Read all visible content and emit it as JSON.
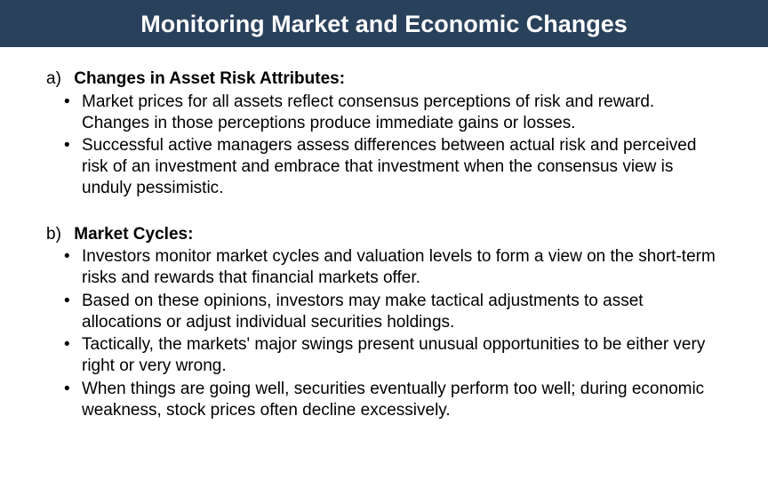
{
  "colors": {
    "title_background": "#2a415c",
    "title_text": "#ffffff",
    "body_text": "#000000",
    "page_background": "#ffffff"
  },
  "typography": {
    "title_fontsize": 27,
    "title_weight": "bold",
    "body_fontsize": 19,
    "font_family": "Arial"
  },
  "title": "Monitoring Market and Economic Changes",
  "sections": [
    {
      "marker": "a)",
      "heading": "Changes in Asset Risk Attributes:",
      "bullets": [
        "Market prices for all assets reflect consensus perceptions of risk and reward. Changes in those perceptions produce immediate gains or losses.",
        "Successful active managers assess differences between actual risk and perceived risk of an investment and embrace that investment when the consensus view is unduly pessimistic."
      ]
    },
    {
      "marker": "b)",
      "heading": "Market Cycles:",
      "bullets": [
        "Investors monitor market cycles and valuation levels to form a view on the short-term risks and rewards that financial markets offer.",
        "Based on these opinions, investors may make tactical adjustments to asset allocations or adjust individual securities holdings.",
        "Tactically, the markets' major swings present unusual opportunities to be either very right or very wrong.",
        "When things are going well, securities eventually perform too well; during economic weakness, stock prices often decline excessively."
      ]
    }
  ]
}
